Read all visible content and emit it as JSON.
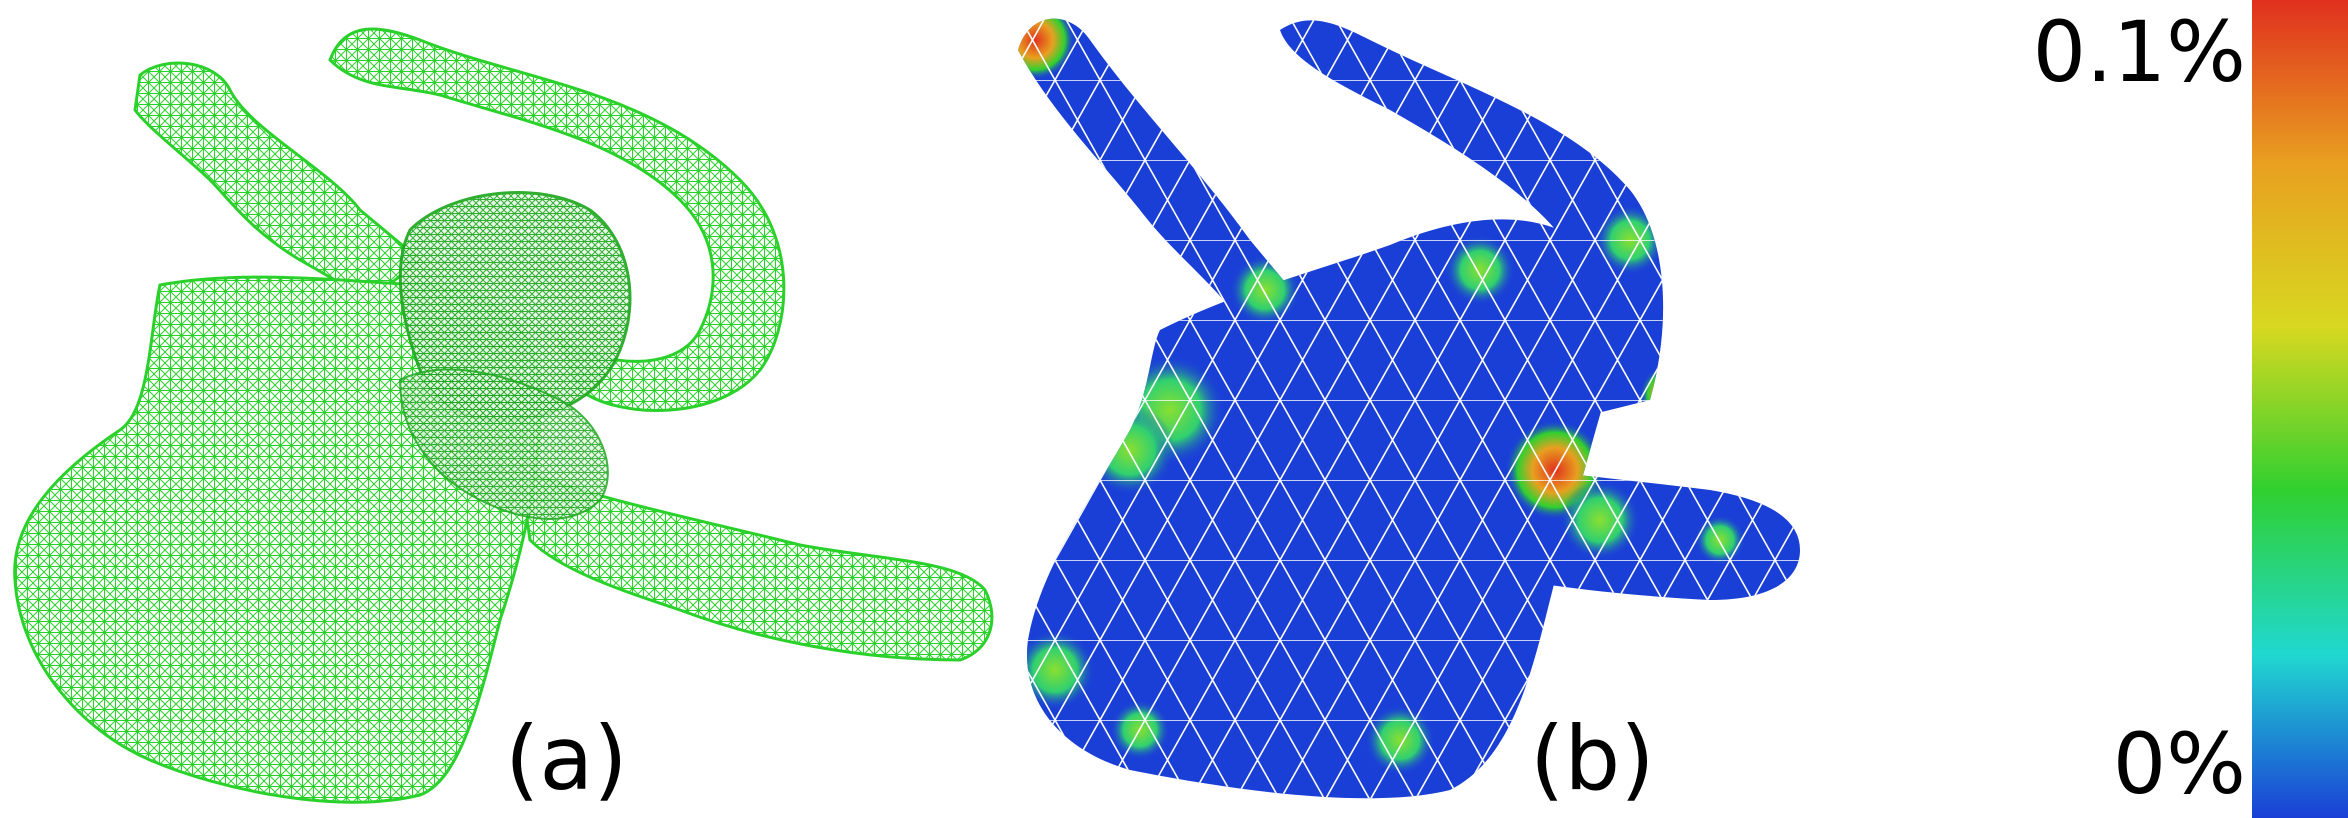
{
  "figure": {
    "panel_a": {
      "caption": "(a)",
      "mesh_color": "#2bd12b"
    },
    "panel_b": {
      "caption": "(b)",
      "surface_color": "#1a3fd6",
      "edge_color": "#ffffff"
    },
    "colorbar": {
      "max_label": "0.1%",
      "min_label": "0%",
      "colors": [
        "#e0301e",
        "#e8a020",
        "#d8d820",
        "#30d030",
        "#20d8d0",
        "#1a3fd6"
      ]
    }
  }
}
